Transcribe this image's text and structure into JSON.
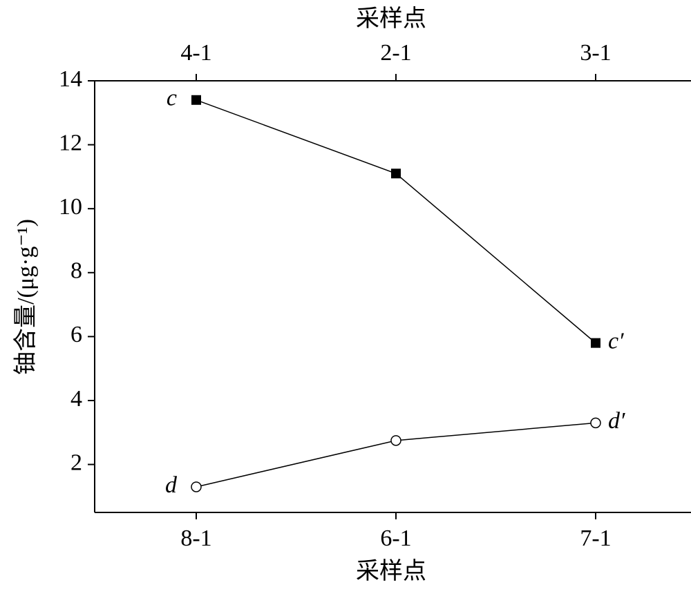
{
  "chart_data": {
    "type": "line",
    "title_top": "采样点",
    "xlabel": "采样点",
    "ylabel": "铀含量/(μg·g⁻¹)",
    "categories": [
      "8-1",
      "6-1",
      "7-1"
    ],
    "top_categories": [
      "4-1",
      "2-1",
      "3-1"
    ],
    "series": [
      {
        "values": [
          13.4,
          11.1,
          5.8
        ],
        "marker": "square",
        "x_axis": "top",
        "color": "#000000",
        "labels": [
          "c",
          null,
          "c′"
        ]
      },
      {
        "values": [
          1.3,
          2.75,
          3.3
        ],
        "marker": "circle",
        "x_axis": "bottom",
        "color": "#000000",
        "labels": [
          "d",
          null,
          "d′"
        ]
      }
    ],
    "ylim": [
      0.5,
      14
    ],
    "yticks": [
      2,
      4,
      6,
      8,
      10,
      12,
      14
    ]
  }
}
